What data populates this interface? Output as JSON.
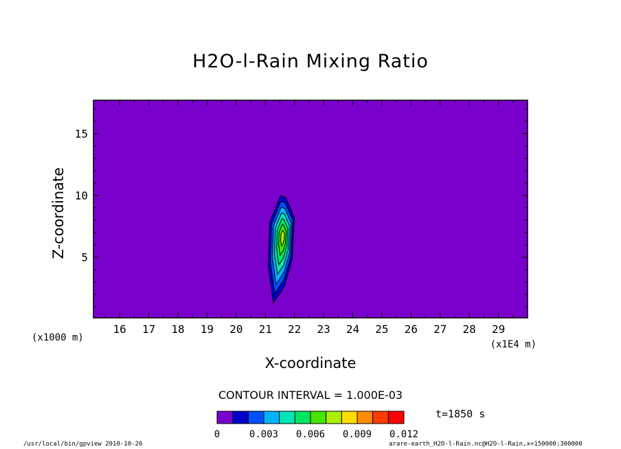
{
  "title": "H2O-l-Rain Mixing Ratio",
  "chart_data": {
    "type": "heatmap",
    "title": "H2O-l-Rain Mixing Ratio",
    "xlabel": "X-coordinate",
    "ylabel": "Z-coordinate",
    "x_unit": "(x1E4 m)",
    "y_unit": "(x1000 m)",
    "xlim": [
      15.1,
      30
    ],
    "ylim": [
      0.1,
      17.7
    ],
    "x_ticks": [
      "16",
      "17",
      "18",
      "19",
      "20",
      "21",
      "22",
      "23",
      "24",
      "25",
      "26",
      "27",
      "28",
      "29"
    ],
    "y_ticks": [
      "5",
      "10",
      "15"
    ],
    "background_value": 0,
    "background_color": "#7a00cc",
    "feature": {
      "x_range": [
        21.1,
        22.0
      ],
      "z_range": [
        1.3,
        10.0
      ],
      "max_value_location": {
        "x": 21.6,
        "z": 6.7
      },
      "max_value_approx": 0.007
    },
    "contour_interval": "CONTOUR INTERVAL = 1.000E-03",
    "colorbar": {
      "levels": [
        0,
        0.001,
        0.002,
        0.003,
        0.004,
        0.005,
        0.006,
        0.007,
        0.008,
        0.009,
        0.01,
        0.011,
        0.012
      ],
      "colors": [
        "#7a00cc",
        "#0000cc",
        "#0050ff",
        "#00b4ff",
        "#00e6b4",
        "#00e664",
        "#46e600",
        "#aaf000",
        "#ffdc00",
        "#ff8c00",
        "#ff3c00",
        "#ff0000",
        "#ffa0a0"
      ],
      "tick_labels": [
        "0",
        "0.003",
        "0.006",
        "0.009",
        "0.012"
      ]
    }
  },
  "time_label": "t=1850 s",
  "footer_left": "/usr/local/bin/gpview  2010-10-26",
  "footer_right": "arare-earth_H2O-l-Rain.nc@H2O-l-Rain,x=150000:300000"
}
